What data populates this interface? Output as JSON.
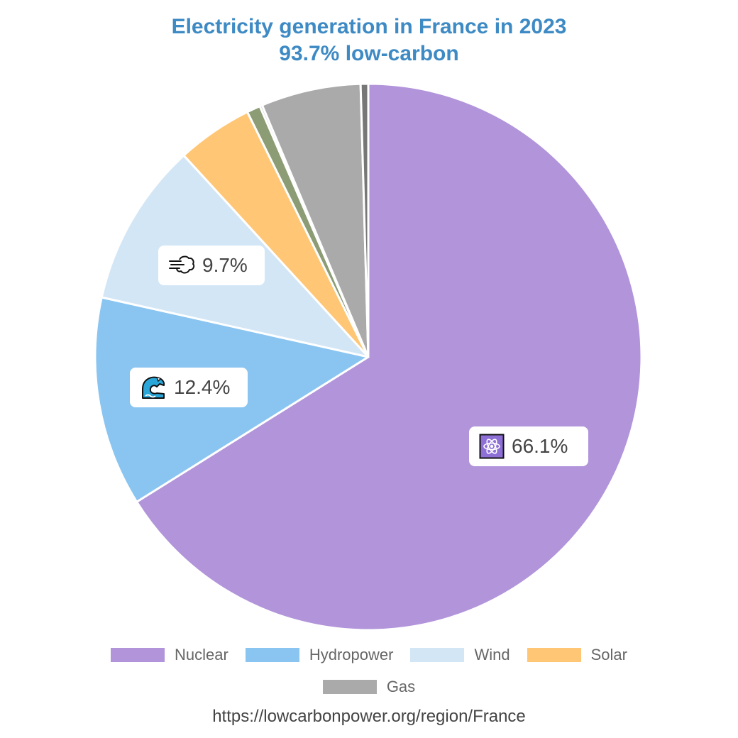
{
  "title": "Electricity generation in France in 2023",
  "subtitle": "93.7% low-carbon",
  "source": "https://lowcarbonpower.org/region/France",
  "chart_data": {
    "type": "pie",
    "title": "Electricity generation in France in 2023",
    "subtitle": "93.7% low-carbon",
    "start_angle_deg": 0,
    "direction": "clockwise",
    "slices": [
      {
        "name": "Nuclear",
        "value": 66.1,
        "color": "#b294da",
        "label": "66.1%",
        "icon": "atom-icon",
        "in_legend": true
      },
      {
        "name": "Hydropower",
        "value": 12.4,
        "color": "#8ac5f1",
        "label": "12.4%",
        "icon": "water-wave-icon",
        "in_legend": true
      },
      {
        "name": "Wind",
        "value": 9.7,
        "color": "#d2e6f6",
        "label": "9.7%",
        "icon": "wind-icon",
        "in_legend": true
      },
      {
        "name": "Solar",
        "value": 4.5,
        "color": "#ffc675",
        "in_legend": true
      },
      {
        "name": "",
        "value": 0.8,
        "color": "#8c9c74",
        "in_legend": false
      },
      {
        "name": "",
        "value": 0.15,
        "color": "#c8c8c8",
        "in_legend": false
      },
      {
        "name": "Gas",
        "value": 5.9,
        "color": "#aaaaaa",
        "in_legend": true
      },
      {
        "name": "",
        "value": 0.45,
        "color": "#777777",
        "in_legend": false
      }
    ],
    "legend": {
      "placement": "bottom",
      "rows": [
        [
          "Nuclear",
          "Hydropower",
          "Wind",
          "Solar"
        ],
        [
          "Gas"
        ]
      ]
    }
  },
  "legend_labels": {
    "nuclear": "Nuclear",
    "hydropower": "Hydropower",
    "wind": "Wind",
    "solar": "Solar",
    "gas": "Gas"
  },
  "slice_labels": {
    "nuclear": "66.1%",
    "hydropower": "12.4%",
    "wind": "9.7%"
  },
  "colors": {
    "title": "#3d8ac4",
    "nuclear": "#b294da",
    "hydropower": "#8ac5f1",
    "wind": "#d2e6f6",
    "solar": "#ffc675",
    "gas": "#aaaaaa"
  }
}
